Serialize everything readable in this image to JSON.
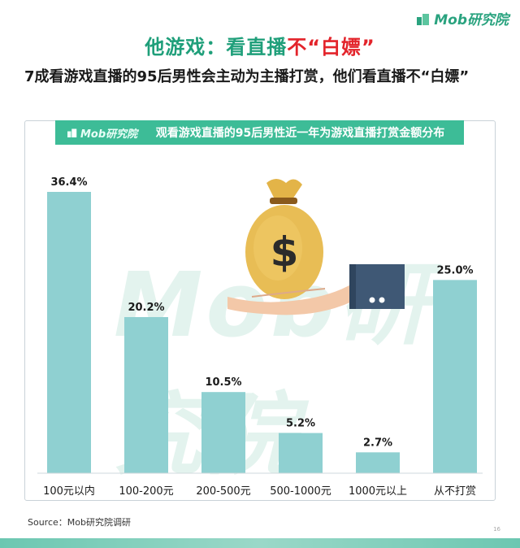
{
  "brand": "Mob研究院",
  "headline": {
    "part1": "他游戏：看直播",
    "part2": "不",
    "part3": "“白嫖”"
  },
  "subtitle": "7成看游戏直播的95后男性会主动为主播打赏，他们看直播不“白嫖”",
  "panel": {
    "brand": "Mob研究院",
    "title": "观看游戏直播的95后男性近一年为游戏直播打赏金额分布"
  },
  "watermark": "Mob研究院",
  "source": "Source：Mob研究院调研",
  "page_number": "16",
  "colors": {
    "bar": "#8fd0d1",
    "accent": "#3dbc97",
    "headline_red": "#e3242b"
  },
  "chart_data": {
    "type": "bar",
    "categories": [
      "100元以内",
      "100-200元",
      "200-500元",
      "500-1000元",
      "1000元以上",
      "从不打赏"
    ],
    "values": [
      36.4,
      20.2,
      10.5,
      5.2,
      2.7,
      25.0
    ],
    "labels": [
      "36.4%",
      "20.2%",
      "10.5%",
      "5.2%",
      "2.7%",
      "25.0%"
    ],
    "ylim": [
      0,
      40
    ],
    "unit": "%",
    "grid": false,
    "title": "观看游戏直播的95后男性近一年为游戏直播打赏金额分布"
  },
  "illustration": {
    "icon": "money-bag-on-hand-icon",
    "bag_symbol": "$"
  }
}
